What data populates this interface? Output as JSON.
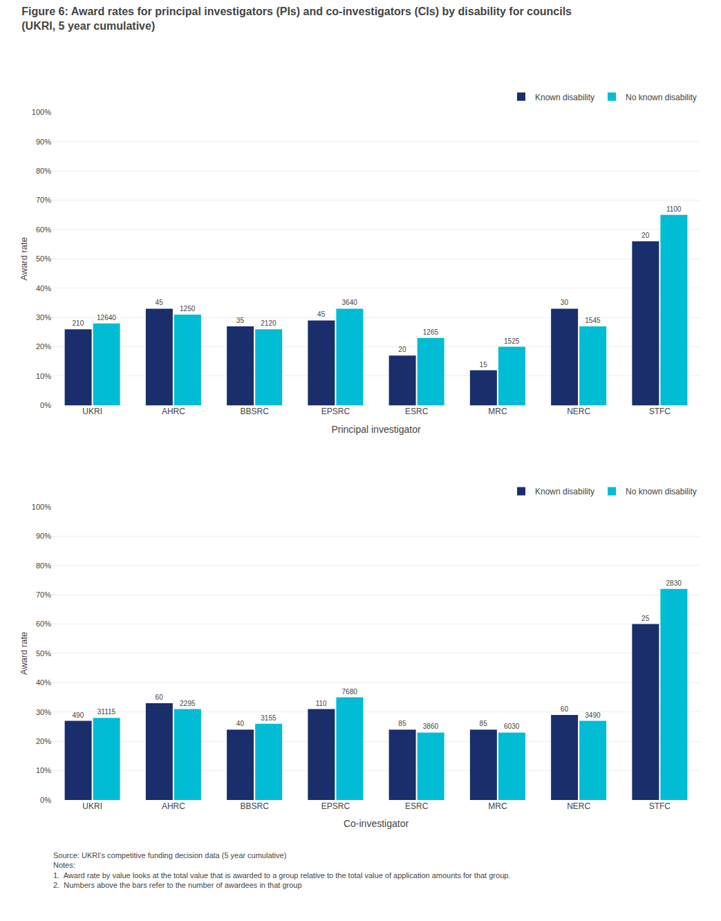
{
  "chart_data": [
    {
      "type": "bar",
      "title": "Figure 6: Award rates for principal investigators (PIs) and co-investigators (CIs) by disability for councils",
      "subtitle": "(UKRI, 5 year cumulative)",
      "categories": [
        "UKRI",
        "AHRC",
        "BBSRC",
        "EPSRC",
        "ESRC",
        "MRC",
        "NERC",
        "STFC"
      ],
      "xlabel": "Principal investigator",
      "ylabel": "Award rate",
      "series": [
        {
          "name": "Known disability",
          "color": "#1a2e6c",
          "values": [
            26,
            33,
            27,
            29,
            17,
            12,
            33,
            56
          ],
          "counts": [
            210,
            45,
            35,
            45,
            20,
            15,
            30,
            20
          ]
        },
        {
          "name": "No known disability",
          "color": "#00bcd4",
          "values": [
            28,
            31,
            26,
            33,
            23,
            20,
            27,
            65
          ],
          "counts": [
            12640,
            1250,
            2120,
            3640,
            1265,
            1525,
            1545,
            1100
          ]
        }
      ],
      "ylim": [
        0,
        100
      ],
      "yticks": [
        {
          "value": 0,
          "label": "0%"
        },
        {
          "value": 10,
          "label": "10%"
        },
        {
          "value": 20,
          "label": "20%"
        },
        {
          "value": 30,
          "label": "30%"
        },
        {
          "value": 40,
          "label": "40%"
        },
        {
          "value": 50,
          "label": "50%"
        },
        {
          "value": 60,
          "label": "60%"
        },
        {
          "value": 70,
          "label": "70%"
        },
        {
          "value": 80,
          "label": "80%"
        },
        {
          "value": 90,
          "label": "90%"
        },
        {
          "value": 100,
          "label": "100%"
        }
      ],
      "grid": true,
      "legend": "upper right"
    },
    {
      "type": "bar",
      "categories": [
        "UKRI",
        "AHRC",
        "BBSRC",
        "EPSRC",
        "ESRC",
        "MRC",
        "NERC",
        "STFC"
      ],
      "xlabel": "Co-investigator",
      "ylabel": "Award rate",
      "series": [
        {
          "name": "Known disability",
          "color": "#1a2e6c",
          "values": [
            27,
            33,
            24,
            31,
            24,
            24,
            29,
            60
          ],
          "counts": [
            490,
            60,
            40,
            110,
            85,
            85,
            60,
            25
          ]
        },
        {
          "name": "No known disability",
          "color": "#00bcd4",
          "values": [
            28,
            31,
            26,
            35,
            23,
            23,
            27,
            72
          ],
          "counts": [
            31115,
            2295,
            3155,
            7680,
            3860,
            6030,
            3490,
            2830
          ]
        }
      ],
      "ylim": [
        0,
        100
      ],
      "yticks": [
        {
          "value": 0,
          "label": "0%"
        },
        {
          "value": 10,
          "label": "10%"
        },
        {
          "value": 20,
          "label": "20%"
        },
        {
          "value": 30,
          "label": "30%"
        },
        {
          "value": 40,
          "label": "40%"
        },
        {
          "value": 50,
          "label": "50%"
        },
        {
          "value": 60,
          "label": "60%"
        },
        {
          "value": 70,
          "label": "70%"
        },
        {
          "value": 80,
          "label": "80%"
        },
        {
          "value": 90,
          "label": "90%"
        },
        {
          "value": 100,
          "label": "100%"
        }
      ],
      "grid": true,
      "legend": "upper right",
      "annotations": [
        "Source: UKRI’s competitive funding decision data (5 year cumulative)",
        "Notes:",
        "1.  Award rate by value looks at the total value that is awarded to a group relative to the total value of application amounts for that group.",
        "2.  Numbers above the bars refer to the number of awardees in that group"
      ]
    }
  ]
}
